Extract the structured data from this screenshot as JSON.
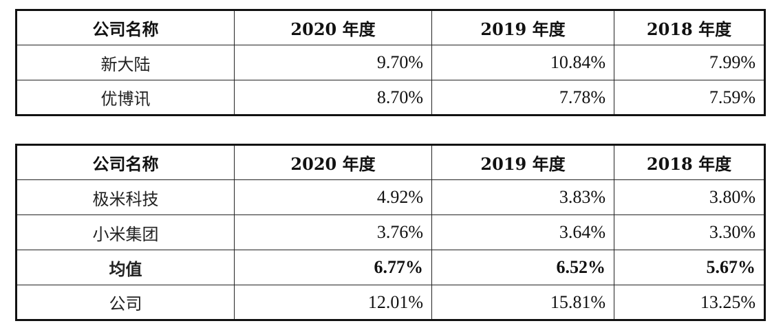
{
  "table1": {
    "headers": [
      "公司名称",
      "2020 年度",
      "2019 年度",
      "2018 年度"
    ],
    "rows": [
      {
        "name": "新大陆",
        "y2020": "9.70%",
        "y2019": "10.84%",
        "y2018": "7.99%"
      },
      {
        "name": "优博讯",
        "y2020": "8.70%",
        "y2019": "7.78%",
        "y2018": "7.59%"
      }
    ]
  },
  "table2": {
    "headers": [
      "公司名称",
      "2020 年度",
      "2019 年度",
      "2018 年度"
    ],
    "rows": [
      {
        "name": "极米科技",
        "y2020": "4.92%",
        "y2019": "3.83%",
        "y2018": "3.80%"
      },
      {
        "name": "小米集团",
        "y2020": "3.76%",
        "y2019": "3.64%",
        "y2018": "3.30%"
      },
      {
        "name": "均值",
        "y2020": "6.77%",
        "y2019": "6.52%",
        "y2018": "5.67%"
      },
      {
        "name": "公司",
        "y2020": "12.01%",
        "y2019": "15.81%",
        "y2018": "13.25%"
      }
    ]
  }
}
